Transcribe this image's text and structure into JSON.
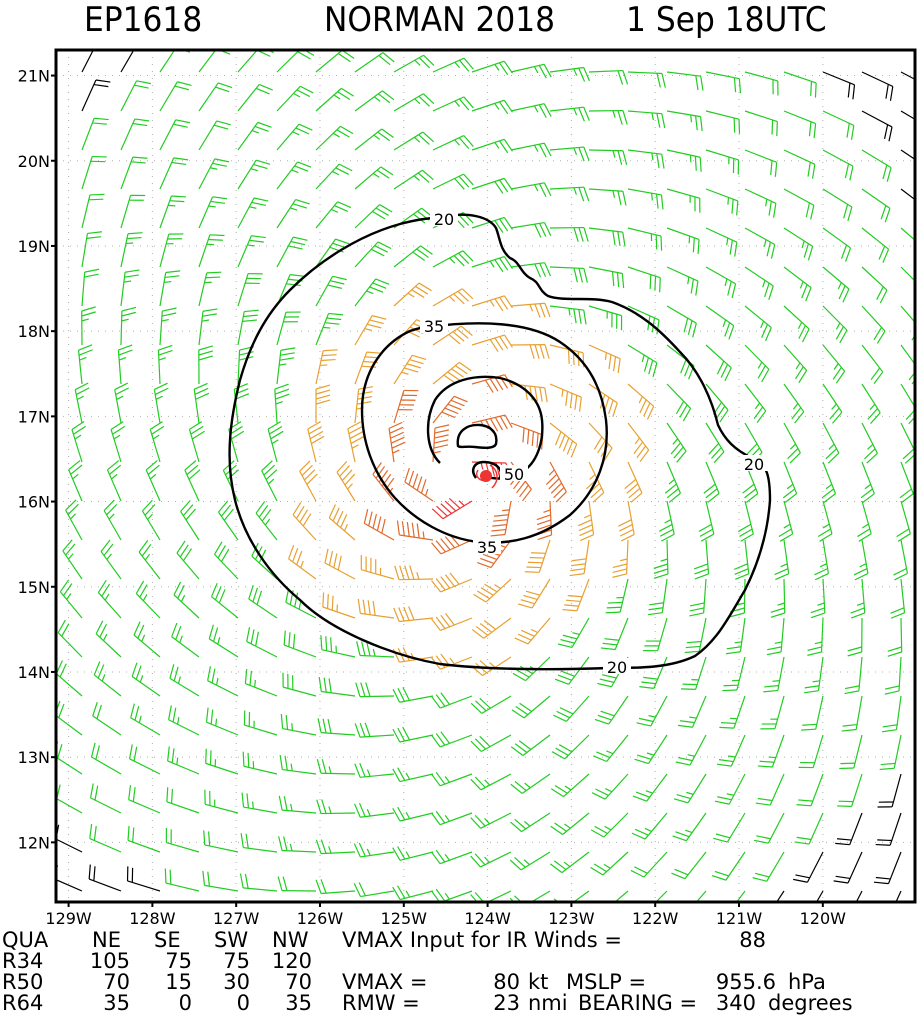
{
  "header": {
    "storm_id": "EP1618",
    "storm_name_year": "NORMAN 2018",
    "datetime": "1 Sep 18UTC"
  },
  "map": {
    "lat_labels": [
      "21N",
      "20N",
      "19N",
      "18N",
      "17N",
      "16N",
      "15N",
      "14N",
      "13N",
      "12N"
    ],
    "lon_labels": [
      "129W",
      "128W",
      "127W",
      "126W",
      "125W",
      "124W",
      "123W",
      "122W",
      "121W",
      "120W"
    ],
    "lat_range": [
      11.3,
      21.3
    ],
    "lon_range": [
      -129.15,
      -118.9
    ],
    "center": {
      "lat": 16.3,
      "lon": -124.25
    },
    "contours": [
      {
        "label": "20",
        "value": 20
      },
      {
        "label": "35",
        "value": 35
      },
      {
        "label": "50",
        "value": 50
      }
    ],
    "barb_colors": {
      "low": "#000000",
      "gale": "#22cc22",
      "storm": "#e8a030",
      "hurricane": "#e06a2a",
      "center": "#ee3333"
    }
  },
  "info_table": {
    "headers": [
      "QUA",
      "NE",
      "SE",
      "SW",
      "NW"
    ],
    "rows": [
      {
        "label": "R34",
        "values": [
          "105",
          "75",
          "75",
          "120"
        ]
      },
      {
        "label": "R50",
        "values": [
          "70",
          "15",
          "30",
          "70"
        ]
      },
      {
        "label": "R64",
        "values": [
          "35",
          "0",
          "0",
          "35"
        ]
      }
    ]
  },
  "vmax_input": {
    "label": "VMAX Input for IR Winds =",
    "value": "88"
  },
  "vmax": {
    "label": "VMAX =",
    "value": "80",
    "unit": "kt"
  },
  "mslp": {
    "label": "MSLP =",
    "value": "955.6",
    "unit": "hPa"
  },
  "rmw": {
    "label": "RMW =",
    "value": "23",
    "unit": "nmi"
  },
  "bearing": {
    "label": "BEARING =",
    "value": "340",
    "unit": "degrees"
  }
}
